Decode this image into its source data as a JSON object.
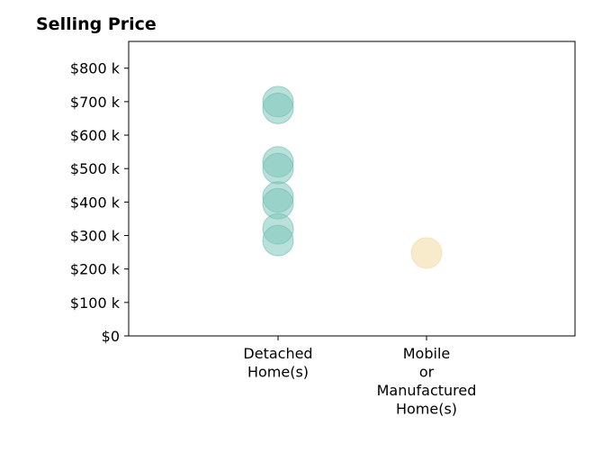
{
  "chart_data": {
    "type": "scatter",
    "title": "Selling Price",
    "xlabel": "",
    "ylabel": "",
    "categories": [
      [
        "Detached",
        "Home(s)"
      ],
      [
        "Mobile",
        "or",
        "Manufactured",
        "Home(s)"
      ]
    ],
    "y_ticks": [
      "$0",
      "$100 k",
      "$200 k",
      "$300 k",
      "$400 k",
      "$500 k",
      "$600 k",
      "$700 k",
      "$800 k"
    ],
    "ylim": [
      0,
      880000
    ],
    "grid": false,
    "legend": "none",
    "points": [
      {
        "category": 0,
        "y": 700000,
        "color": "#7fc6bc"
      },
      {
        "category": 0,
        "y": 680000,
        "color": "#7fc6bc"
      },
      {
        "category": 0,
        "y": 520000,
        "color": "#7fc6bc"
      },
      {
        "category": 0,
        "y": 500000,
        "color": "#7fc6bc"
      },
      {
        "category": 0,
        "y": 415000,
        "color": "#7fc6bc"
      },
      {
        "category": 0,
        "y": 395000,
        "color": "#7fc6bc"
      },
      {
        "category": 0,
        "y": 320000,
        "color": "#7fc6bc"
      },
      {
        "category": 0,
        "y": 285000,
        "color": "#7fc6bc"
      },
      {
        "category": 1,
        "y": 248000,
        "color": "#f5e0b0"
      }
    ]
  }
}
